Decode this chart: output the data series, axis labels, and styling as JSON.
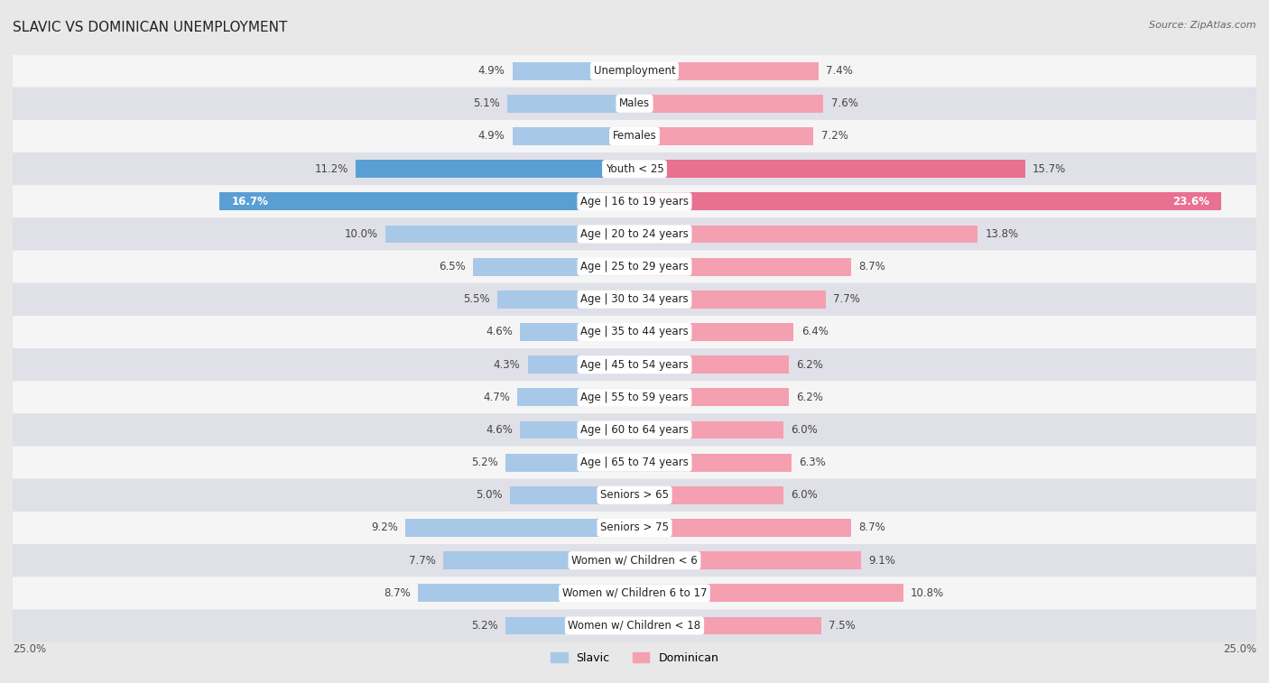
{
  "title": "SLAVIC VS DOMINICAN UNEMPLOYMENT",
  "source": "Source: ZipAtlas.com",
  "categories": [
    "Unemployment",
    "Males",
    "Females",
    "Youth < 25",
    "Age | 16 to 19 years",
    "Age | 20 to 24 years",
    "Age | 25 to 29 years",
    "Age | 30 to 34 years",
    "Age | 35 to 44 years",
    "Age | 45 to 54 years",
    "Age | 55 to 59 years",
    "Age | 60 to 64 years",
    "Age | 65 to 74 years",
    "Seniors > 65",
    "Seniors > 75",
    "Women w/ Children < 6",
    "Women w/ Children 6 to 17",
    "Women w/ Children < 18"
  ],
  "slavic": [
    4.9,
    5.1,
    4.9,
    11.2,
    16.7,
    10.0,
    6.5,
    5.5,
    4.6,
    4.3,
    4.7,
    4.6,
    5.2,
    5.0,
    9.2,
    7.7,
    8.7,
    5.2
  ],
  "dominican": [
    7.4,
    7.6,
    7.2,
    15.7,
    23.6,
    13.8,
    8.7,
    7.7,
    6.4,
    6.2,
    6.2,
    6.0,
    6.3,
    6.0,
    8.7,
    9.1,
    10.8,
    7.5
  ],
  "slavic_color": "#a8c8e8",
  "dominican_color": "#f4a0b0",
  "slavic_bold_color": "#5a9fd4",
  "dominican_bold_color": "#e87090",
  "highlight_indices": [
    3,
    4
  ],
  "xlim": 25.0,
  "bg_color": "#e8e8e8",
  "row_light": "#f5f5f5",
  "row_dark": "#e0e0e8",
  "bar_height": 0.55,
  "label_fontsize": 8.5,
  "value_fontsize": 8.5,
  "title_fontsize": 11,
  "source_fontsize": 8
}
